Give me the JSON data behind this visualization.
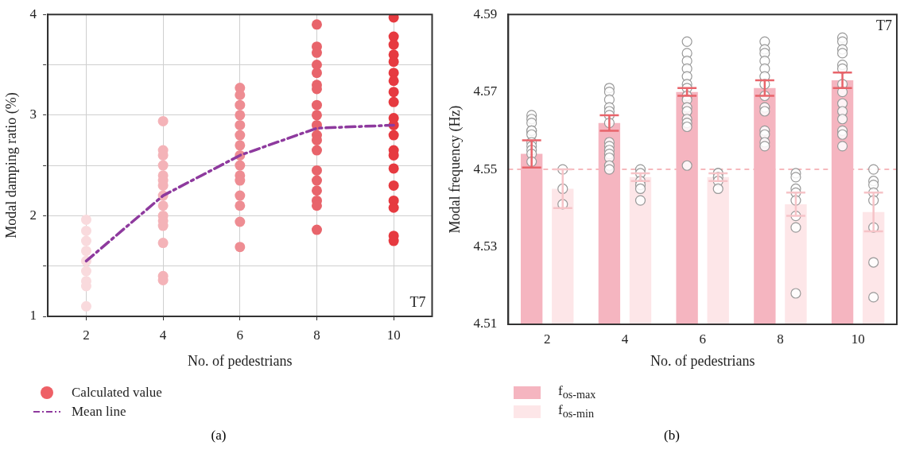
{
  "chart_data": [
    {
      "type": "scatter",
      "xlabel": "No. of pedestrians",
      "ylabel": "Modal damping ratio (%)",
      "xlim": [
        1,
        11
      ],
      "xticks": [
        2,
        4,
        6,
        8,
        10
      ],
      "ylim": [
        1,
        4
      ],
      "yticks": [
        1,
        {
          "value": 1.5,
          "label": null
        },
        2,
        {
          "value": 2.5,
          "label": null
        },
        3,
        {
          "value": 3.5,
          "label": null
        },
        4
      ],
      "grid": true,
      "legend": "bottom",
      "annotations": [
        "T7",
        "(a)"
      ],
      "series": [
        {
          "name": "Calculated value",
          "type": "scatter",
          "marker": "circle",
          "color": "#ee6066",
          "x": [
            2,
            2,
            2,
            2,
            2,
            2,
            2,
            2,
            2,
            4,
            4,
            4,
            4,
            4,
            4,
            4,
            4,
            4,
            4,
            4,
            4,
            4,
            4,
            4,
            6,
            6,
            6,
            6,
            6,
            6,
            6,
            6,
            6,
            6,
            6,
            6,
            6,
            6,
            6,
            8,
            8,
            8,
            8,
            8,
            8,
            8,
            8,
            8,
            8,
            8,
            8,
            8,
            8,
            8,
            8,
            8,
            8,
            8,
            10,
            10,
            10,
            10,
            10,
            10,
            10,
            10,
            10,
            10,
            10,
            10,
            10,
            10,
            10,
            10,
            10,
            10,
            10,
            10
          ],
          "values": [
            1.96,
            1.85,
            1.75,
            1.65,
            1.55,
            1.45,
            1.35,
            1.3,
            1.1,
            2.94,
            2.65,
            2.6,
            2.5,
            2.4,
            2.35,
            2.3,
            2.2,
            2.1,
            2.0,
            1.95,
            1.9,
            1.73,
            1.4,
            1.36,
            3.27,
            3.2,
            3.1,
            3.0,
            2.9,
            2.8,
            2.7,
            2.6,
            2.5,
            2.4,
            2.35,
            2.2,
            2.1,
            1.94,
            1.69,
            3.9,
            3.68,
            3.62,
            3.5,
            3.42,
            3.3,
            3.26,
            3.1,
            3.0,
            2.9,
            2.8,
            2.75,
            2.65,
            2.45,
            2.35,
            2.25,
            2.15,
            2.1,
            1.86,
            3.97,
            3.78,
            3.7,
            3.6,
            3.53,
            3.42,
            3.34,
            3.23,
            3.13,
            2.97,
            2.9,
            2.8,
            2.65,
            2.6,
            2.47,
            2.3,
            2.15,
            2.08,
            1.8,
            1.75
          ],
          "colors": [
            "#f9dadd",
            "#f9dadd",
            "#f9dadd",
            "#f9dadd",
            "#f9dadd",
            "#f9dadd",
            "#f9dadd",
            "#f9dadd",
            "#f9dadd",
            "#f4b3b8",
            "#f4b3b8",
            "#f4b3b8",
            "#f4b3b8",
            "#f4b3b8",
            "#f4b3b8",
            "#f4b3b8",
            "#f4b3b8",
            "#f4b3b8",
            "#f4b3b8",
            "#f4b3b8",
            "#f4b3b8",
            "#f4b3b8",
            "#f4b3b8",
            "#f4b3b8",
            "#ee8d93",
            "#ee8d93",
            "#ee8d93",
            "#ee8d93",
            "#ee8d93",
            "#ee8d93",
            "#ee8d93",
            "#ee8d93",
            "#ee8d93",
            "#ee8d93",
            "#ee8d93",
            "#ee8d93",
            "#ee8d93",
            "#ee8d93",
            "#ee8d93",
            "#e8646b",
            "#e8646b",
            "#e8646b",
            "#e8646b",
            "#e8646b",
            "#e8646b",
            "#e8646b",
            "#e8646b",
            "#e8646b",
            "#e8646b",
            "#e8646b",
            "#e8646b",
            "#e8646b",
            "#e8646b",
            "#e8646b",
            "#e8646b",
            "#e8646b",
            "#e8646b",
            "#e8646b",
            "#e63a40",
            "#e63a40",
            "#e63a40",
            "#e63a40",
            "#e63a40",
            "#e63a40",
            "#e63a40",
            "#e63a40",
            "#e63a40",
            "#e63a40",
            "#e63a40",
            "#e63a40",
            "#e63a40",
            "#e63a40",
            "#e63a40",
            "#e63a40",
            "#e63a40",
            "#e63a40",
            "#e63a40",
            "#e63a40"
          ]
        },
        {
          "name": "Mean line",
          "type": "line",
          "marker": "none",
          "line_style": "dashed",
          "color": "#8e3a9e",
          "x": [
            2,
            4,
            6,
            8,
            10
          ],
          "values": [
            1.55,
            2.2,
            2.6,
            2.87,
            2.9
          ]
        }
      ]
    },
    {
      "type": "bar",
      "xlabel": "No. of pedestrians",
      "ylabel": "Modal frequency (Hz)",
      "categories": [
        "2",
        "4",
        "6",
        "8",
        "10"
      ],
      "ylim": [
        4.51,
        4.59
      ],
      "yticks": [
        4.51,
        4.53,
        4.55,
        4.57,
        4.59
      ],
      "legend": "bottom",
      "annotations": [
        "T7",
        "(b)"
      ],
      "ref_lines": [
        {
          "axis": "y",
          "value": 4.55,
          "color": "#f4a3a8",
          "line_style": "dashed"
        }
      ],
      "series": [
        {
          "name": "f$_{os-max}$",
          "type": "bar",
          "color": "#f5b5c0",
          "values": [
            4.554,
            4.562,
            4.57,
            4.571,
            4.573
          ],
          "errors": [
            0.0035,
            0.002,
            0.001,
            0.002,
            0.002
          ]
        },
        {
          "name": "f$_{os-min}$",
          "type": "bar",
          "color": "#fde6e8",
          "values": [
            4.545,
            4.548,
            4.548,
            4.541,
            4.539
          ],
          "errors": [
            0.005,
            0.001,
            0.001,
            0.003,
            0.005
          ]
        },
        {
          "type": "scatter",
          "marker": "circle",
          "color": "#ffffff",
          "x": [
            "2",
            "2",
            "2",
            "2",
            "2",
            "2",
            "2",
            "2",
            "2",
            "2",
            "2",
            "4",
            "4",
            "4",
            "4",
            "4",
            "4",
            "4",
            "4",
            "4",
            "4",
            "4",
            "4",
            "4",
            "4",
            "6",
            "6",
            "6",
            "6",
            "6",
            "6",
            "6",
            "6",
            "6",
            "6",
            "6",
            "6",
            "6",
            "6",
            "6",
            "8",
            "8",
            "8",
            "8",
            "8",
            "8",
            "8",
            "8",
            "8",
            "8",
            "8",
            "8",
            "8",
            "8",
            "10",
            "10",
            "10",
            "10",
            "10",
            "10",
            "10",
            "10",
            "10",
            "10",
            "10",
            "10",
            "10",
            "10"
          ],
          "values": [
            4.564,
            4.563,
            4.562,
            4.56,
            4.56,
            4.559,
            4.557,
            4.556,
            4.555,
            4.554,
            4.552,
            4.571,
            4.57,
            4.568,
            4.566,
            4.565,
            4.564,
            4.562,
            4.557,
            4.556,
            4.555,
            4.554,
            4.553,
            4.551,
            4.55,
            4.583,
            4.58,
            4.578,
            4.576,
            4.574,
            4.572,
            4.571,
            4.569,
            4.568,
            4.566,
            4.565,
            4.563,
            4.562,
            4.561,
            4.551,
            4.583,
            4.581,
            4.58,
            4.578,
            4.576,
            4.574,
            4.572,
            4.569,
            4.566,
            4.565,
            4.56,
            4.559,
            4.557,
            4.556,
            4.584,
            4.583,
            4.581,
            4.58,
            4.577,
            4.576,
            4.572,
            4.57,
            4.567,
            4.565,
            4.563,
            4.56,
            4.559,
            4.556
          ]
        },
        {
          "type": "scatter",
          "marker": "circle",
          "color": "#ffffff",
          "x": [
            "2",
            "2",
            "2",
            "4",
            "4",
            "4",
            "4",
            "4",
            "4",
            "6",
            "6",
            "6",
            "6",
            "6",
            "8",
            "8",
            "8",
            "8",
            "8",
            "8",
            "8",
            "8",
            "10",
            "10",
            "10",
            "10",
            "10",
            "10",
            "10",
            "10"
          ],
          "values": [
            4.55,
            4.545,
            4.541,
            4.55,
            4.549,
            4.547,
            4.546,
            4.545,
            4.542,
            4.549,
            4.549,
            4.548,
            4.547,
            4.545,
            4.549,
            4.548,
            4.545,
            4.544,
            4.542,
            4.538,
            4.535,
            4.518,
            4.55,
            4.547,
            4.546,
            4.544,
            4.542,
            4.535,
            4.526,
            4.517
          ]
        }
      ]
    }
  ]
}
